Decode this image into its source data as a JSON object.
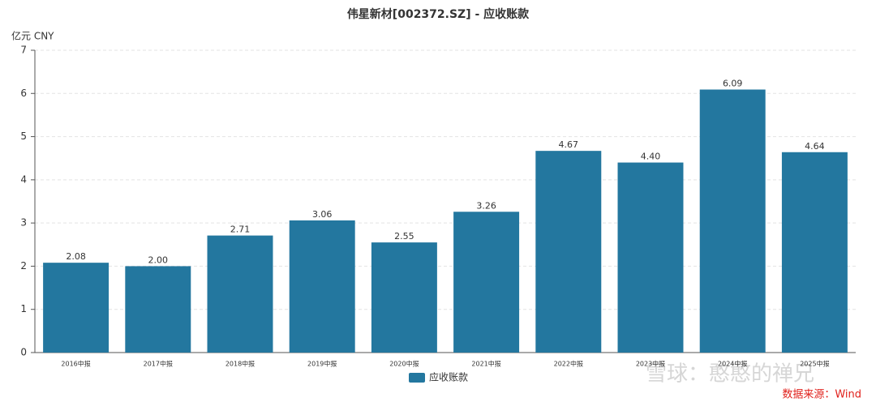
{
  "chart_data": {
    "type": "bar",
    "title": "伟星新材[002372.SZ] - 应收账款",
    "y_unit": "亿元  CNY",
    "categories": [
      "2016中报",
      "2017中报",
      "2018中报",
      "2019中报",
      "2020中报",
      "2021中报",
      "2022中报",
      "2023中报",
      "2024中报",
      "2025中报"
    ],
    "series": [
      {
        "name": "应收账款",
        "color": "#23779f",
        "values": [
          2.08,
          2.0,
          2.71,
          3.06,
          2.55,
          3.26,
          4.67,
          4.4,
          6.09,
          4.64
        ],
        "value_labels": [
          "2.08",
          "2.00",
          "2.71",
          "3.06",
          "2.55",
          "3.26",
          "4.67",
          "4.40",
          "6.09",
          "4.64"
        ]
      }
    ],
    "ylim": [
      0,
      7
    ],
    "yticks": [
      0,
      1,
      2,
      3,
      4,
      5,
      6,
      7
    ],
    "grid": true,
    "source": "数据来源：Wind",
    "watermark": "雪球：憨憨的禅兄"
  }
}
